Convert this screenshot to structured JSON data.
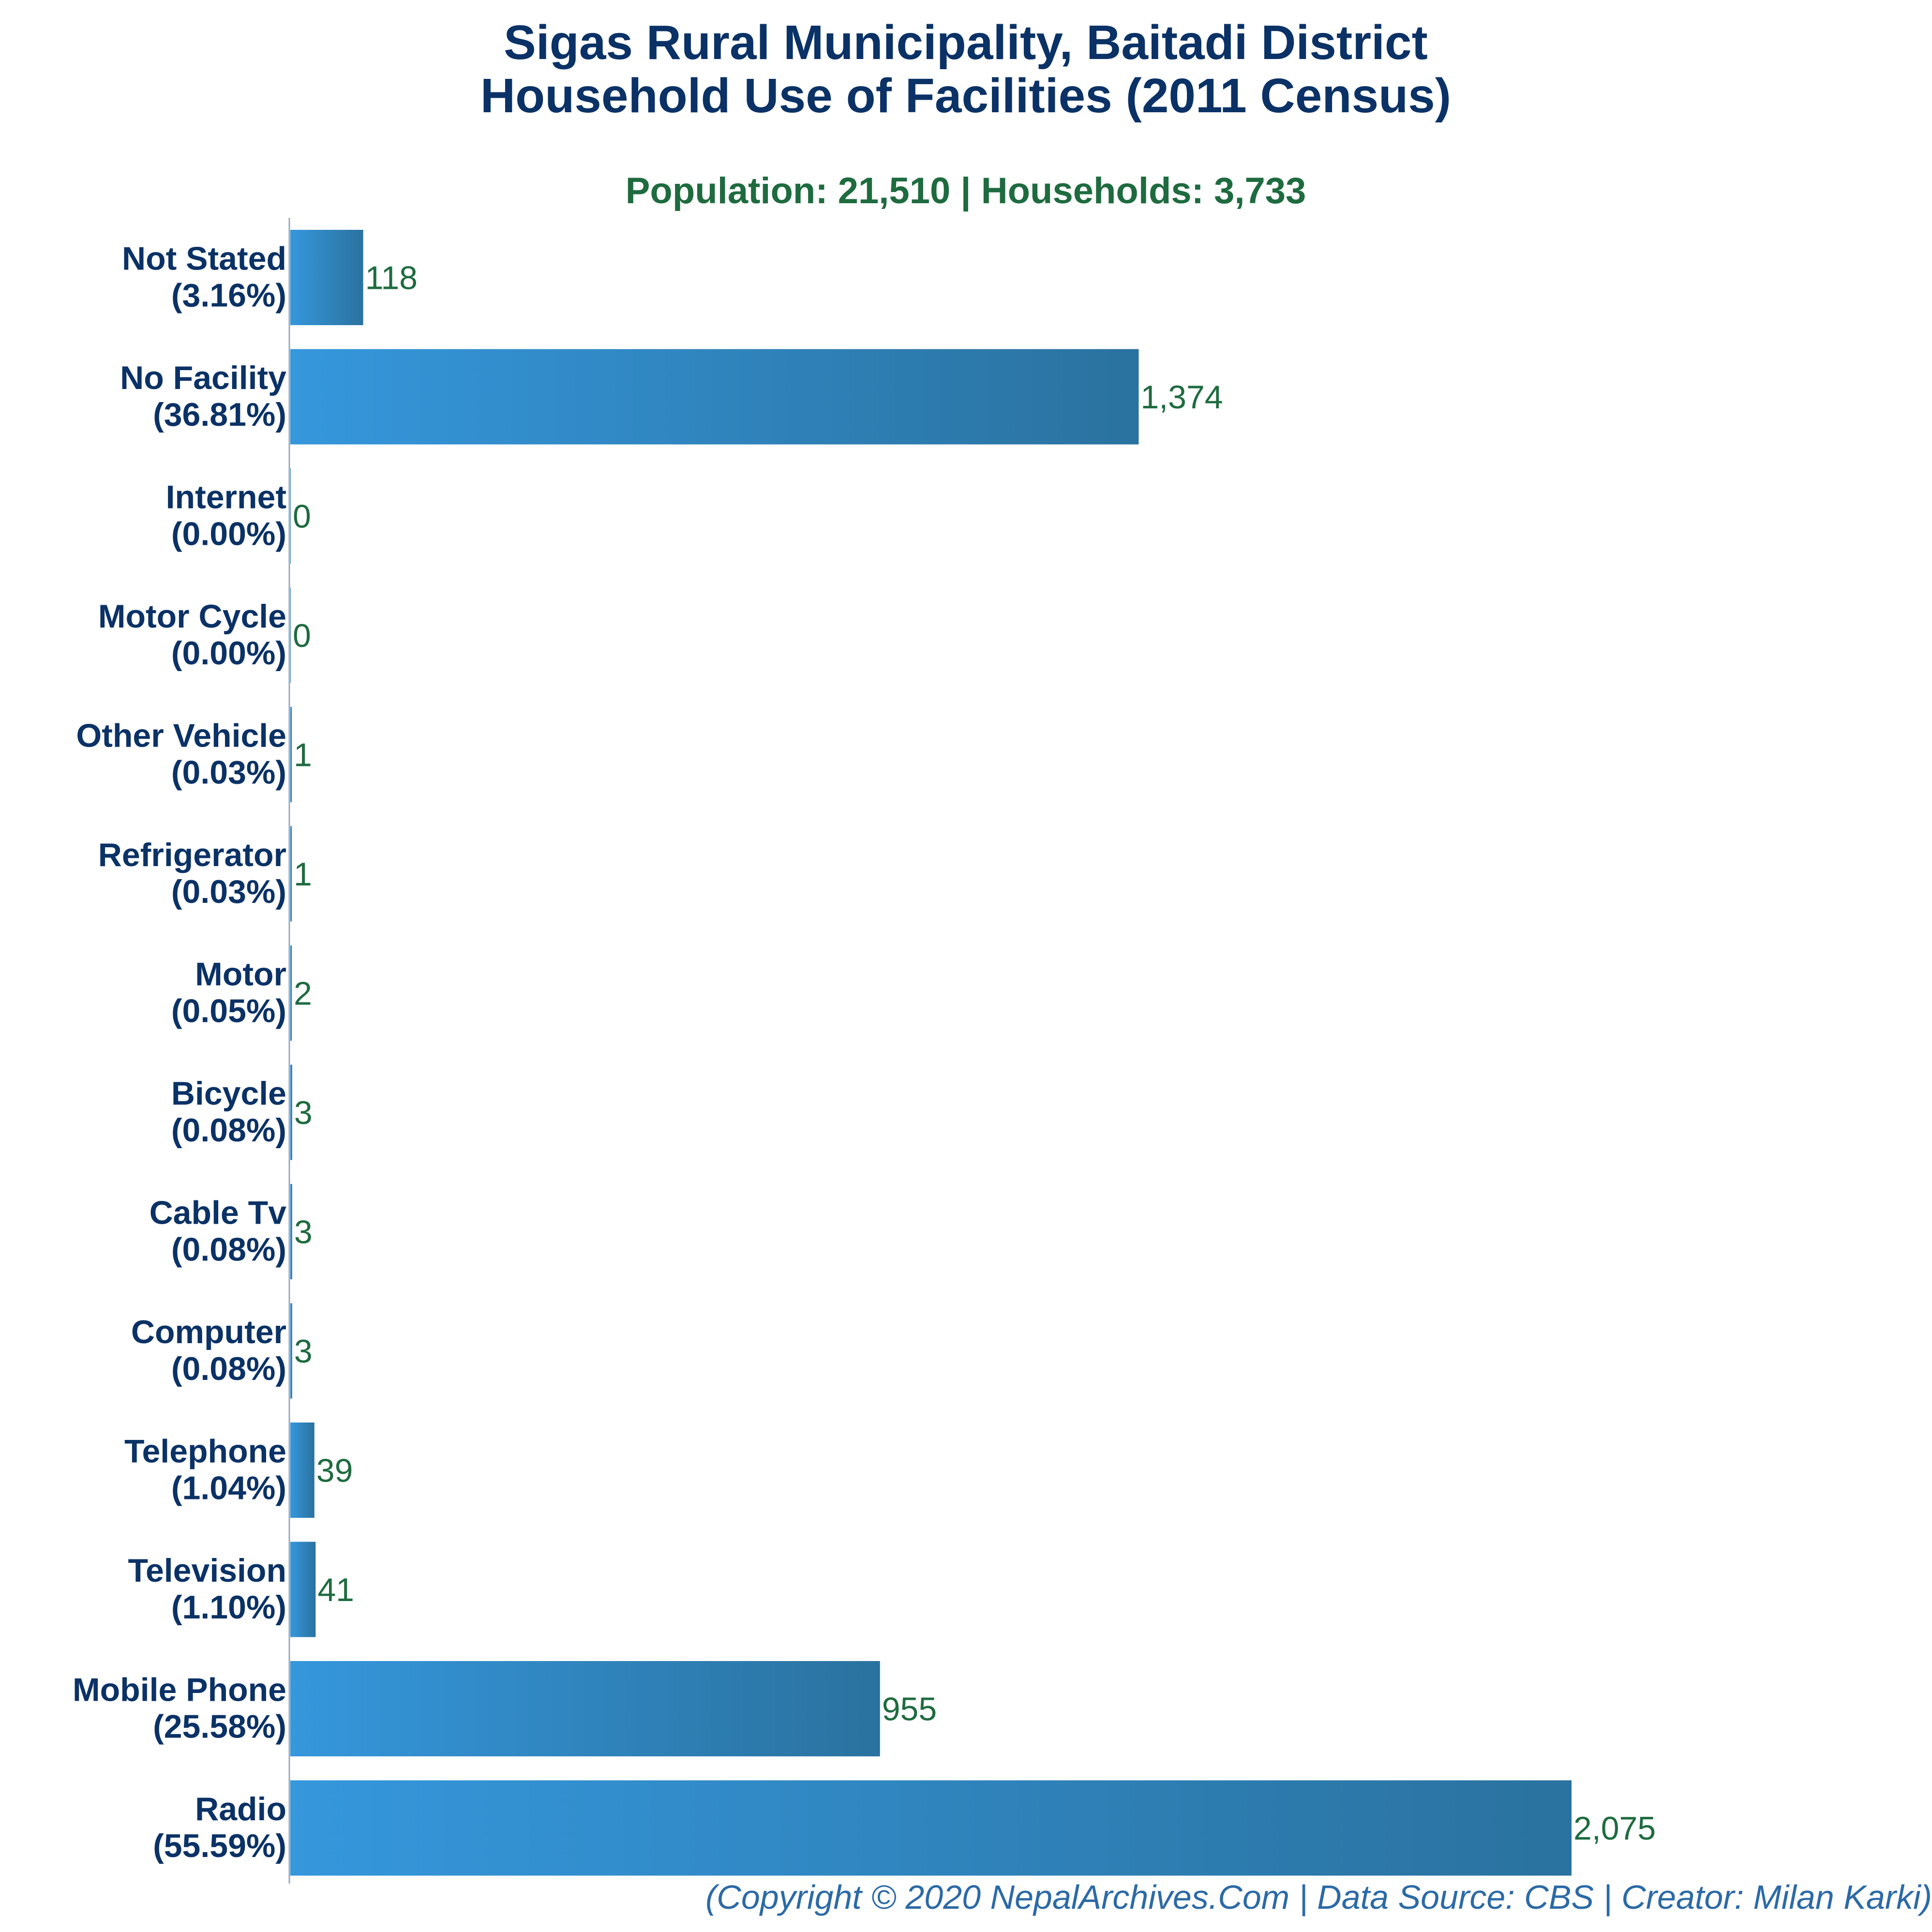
{
  "chart_data": {
    "type": "bar",
    "orientation": "horizontal",
    "title_line1": "Sigas Rural Municipality, Baitadi District",
    "title_line2": "Household Use of Facilities (2011 Census)",
    "subtitle": "Population: 21,510 | Households: 3,733",
    "categories": [
      "Not Stated",
      "No Facility",
      "Internet",
      "Motor Cycle",
      "Other Vehicle",
      "Refrigerator",
      "Motor",
      "Bicycle",
      "Cable Tv",
      "Computer",
      "Telephone",
      "Television",
      "Mobile Phone",
      "Radio"
    ],
    "percent_labels": [
      "(3.16%)",
      "(36.81%)",
      "(0.00%)",
      "(0.00%)",
      "(0.03%)",
      "(0.03%)",
      "(0.05%)",
      "(0.08%)",
      "(0.08%)",
      "(0.08%)",
      "(1.04%)",
      "(1.10%)",
      "(25.58%)",
      "(55.59%)"
    ],
    "values": [
      118,
      1374,
      0,
      0,
      1,
      1,
      2,
      3,
      3,
      3,
      39,
      41,
      955,
      2075
    ],
    "value_labels": [
      "118",
      "1,374",
      "0",
      "0",
      "1",
      "1",
      "2",
      "3",
      "3",
      "3",
      "39",
      "41",
      "955",
      "2,075"
    ],
    "xlim": [
      0,
      2075
    ],
    "grid": false,
    "legend": "none",
    "colors": {
      "bar_start": "#3597dc",
      "bar_end": "#2a729f",
      "title": "#0b3266",
      "subtitle": "#1e6b3f",
      "value_label": "#1e6b3f",
      "footer": "#2c6aa6",
      "axis": "#9aa8b8"
    }
  },
  "footer": "(Copyright © 2020 NepalArchives.Com | Data Source: CBS | Creator: Milan Karki)"
}
